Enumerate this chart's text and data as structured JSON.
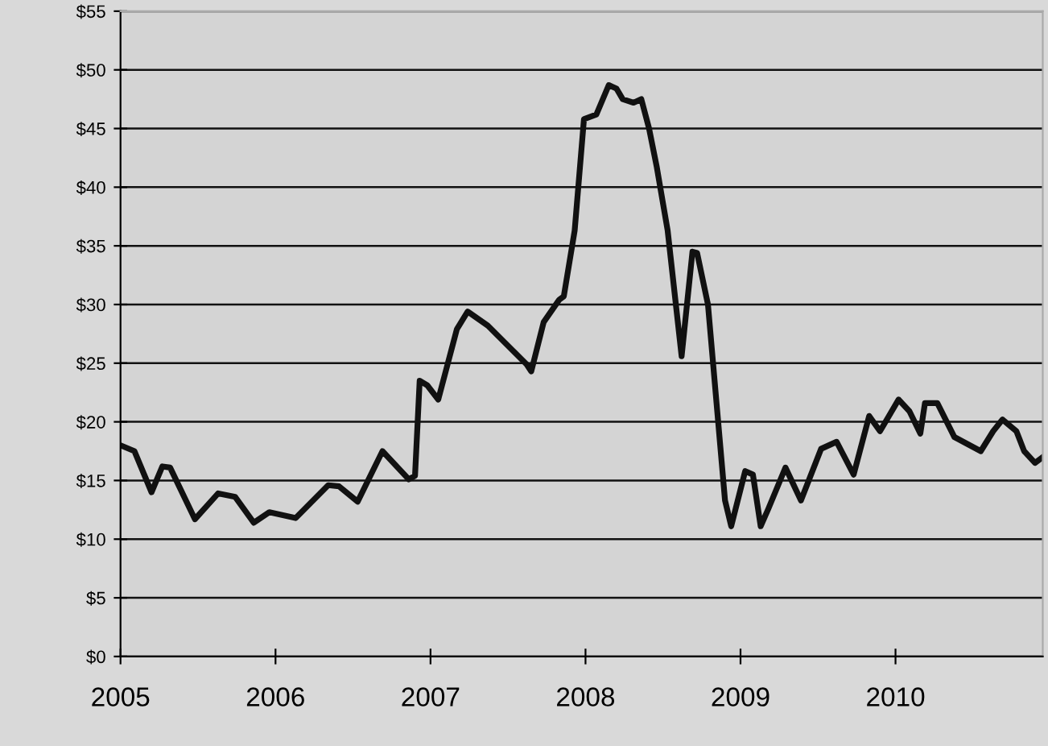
{
  "chart_data": {
    "type": "line",
    "x": [
      2005.0,
      2005.09,
      2005.2,
      2005.27,
      2005.32,
      2005.48,
      2005.63,
      2005.74,
      2005.86,
      2005.96,
      2006.13,
      2006.34,
      2006.41,
      2006.53,
      2006.69,
      2006.86,
      2006.9,
      2006.93,
      2006.98,
      2007.05,
      2007.17,
      2007.24,
      2007.37,
      2007.62,
      2007.65,
      2007.73,
      2007.83,
      2007.86,
      2007.93,
      2007.99,
      2008.07,
      2008.15,
      2008.2,
      2008.24,
      2008.31,
      2008.36,
      2008.41,
      2008.46,
      2008.53,
      2008.62,
      2008.69,
      2008.72,
      2008.79,
      2008.9,
      2008.94,
      2009.03,
      2009.08,
      2009.13,
      2009.18,
      2009.29,
      2009.39,
      2009.52,
      2009.62,
      2009.73,
      2009.83,
      2009.9,
      2010.02,
      2010.09,
      2010.16,
      2010.19,
      2010.27,
      2010.38,
      2010.55,
      2010.63,
      2010.69,
      2010.78,
      2010.83,
      2010.9,
      2010.95
    ],
    "series": [
      {
        "color": "#111111",
        "values": [
          18.0,
          17.5,
          14.0,
          16.2,
          16.1,
          11.7,
          13.9,
          13.6,
          11.4,
          12.3,
          11.8,
          14.6,
          14.5,
          13.2,
          17.5,
          15.1,
          15.4,
          23.5,
          23.1,
          21.9,
          27.9,
          29.4,
          28.2,
          24.9,
          24.3,
          28.5,
          30.4,
          30.7,
          36.3,
          45.8,
          46.2,
          48.7,
          48.4,
          47.5,
          47.2,
          47.5,
          45.0,
          41.7,
          36.3,
          25.6,
          34.5,
          34.4,
          30.0,
          13.3,
          11.1,
          15.8,
          15.5,
          11.1,
          12.6,
          16.1,
          13.3,
          17.7,
          18.3,
          15.5,
          20.5,
          19.2,
          21.9,
          20.9,
          19.0,
          21.6,
          21.6,
          18.7,
          17.5,
          19.2,
          20.2,
          19.2,
          17.5,
          16.5,
          17.0
        ]
      }
    ],
    "xlim": [
      2005,
      2010.95
    ],
    "xticks": [
      2005,
      2006,
      2007,
      2008,
      2009,
      2010
    ],
    "ylim": [
      0,
      55
    ],
    "yticks": [
      {
        "value": 0,
        "label": "$0"
      },
      {
        "value": 5,
        "label": "$5"
      },
      {
        "value": 10,
        "label": "$10"
      },
      {
        "value": 15,
        "label": "$15"
      },
      {
        "value": 20,
        "label": "$20"
      },
      {
        "value": 25,
        "label": "$25"
      },
      {
        "value": 30,
        "label": "$30"
      },
      {
        "value": 35,
        "label": "$35"
      },
      {
        "value": 40,
        "label": "$40"
      },
      {
        "value": 45,
        "label": "$45"
      },
      {
        "value": 50,
        "label": "$50"
      },
      {
        "value": 55,
        "label": "$55"
      }
    ],
    "grid": "y",
    "legend": false,
    "marker": "none",
    "line_style": "solid"
  }
}
